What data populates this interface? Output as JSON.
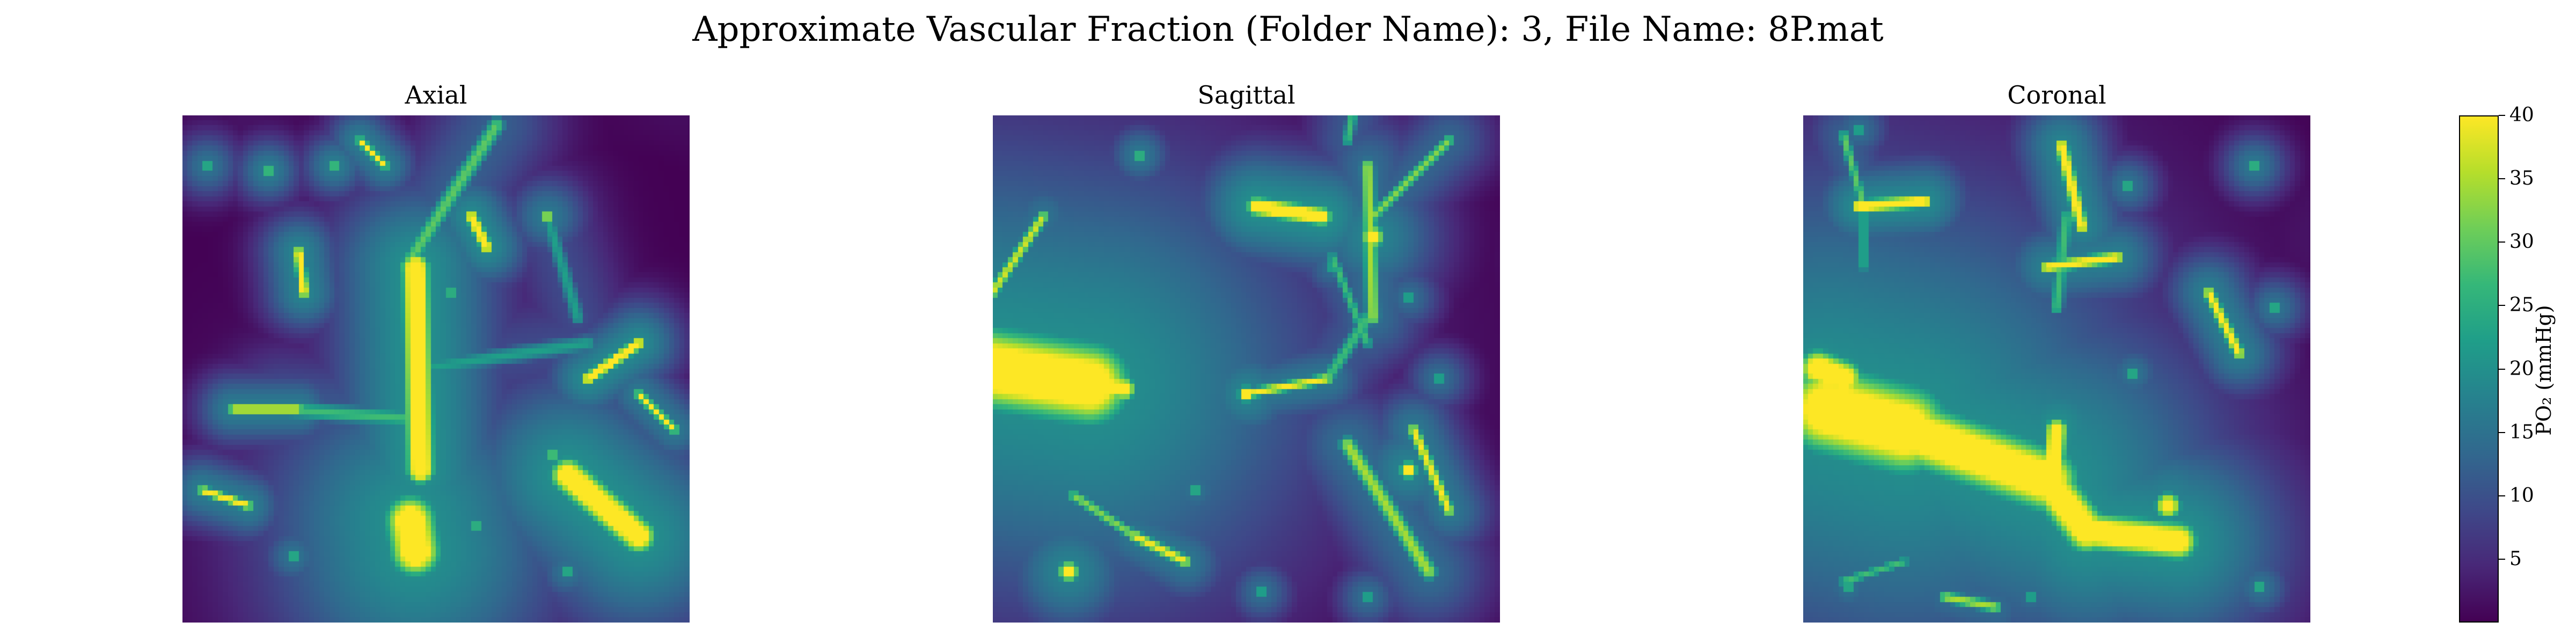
{
  "chart_data": {
    "type": "heatmap",
    "title": "Approximate Vascular Fraction (Folder Name): 3, File Name: 8P.mat",
    "colormap": "viridis",
    "grid": false,
    "panels": [
      {
        "title": "Axial",
        "vessels": [
          {
            "x1": 0.46,
            "y1": 0.3,
            "x2": 0.47,
            "y2": 0.7,
            "peak": 40,
            "width": 0.045
          },
          {
            "x1": 0.45,
            "y1": 0.8,
            "x2": 0.46,
            "y2": 0.86,
            "peak": 40,
            "width": 0.08
          },
          {
            "x1": 0.76,
            "y1": 0.71,
            "x2": 0.9,
            "y2": 0.83,
            "peak": 40,
            "width": 0.055
          },
          {
            "x1": 0.57,
            "y1": 0.2,
            "x2": 0.6,
            "y2": 0.26,
            "peak": 38,
            "width": 0.02
          },
          {
            "x1": 0.23,
            "y1": 0.27,
            "x2": 0.24,
            "y2": 0.35,
            "peak": 36,
            "width": 0.018
          },
          {
            "x1": 0.9,
            "y1": 0.45,
            "x2": 0.8,
            "y2": 0.52,
            "peak": 38,
            "width": 0.02
          },
          {
            "x1": 0.1,
            "y1": 0.58,
            "x2": 0.23,
            "y2": 0.58,
            "peak": 34,
            "width": 0.016
          },
          {
            "x1": 0.04,
            "y1": 0.74,
            "x2": 0.13,
            "y2": 0.77,
            "peak": 34,
            "width": 0.016
          },
          {
            "x1": 0.35,
            "y1": 0.05,
            "x2": 0.4,
            "y2": 0.1,
            "peak": 34,
            "width": 0.014
          },
          {
            "x1": 0.62,
            "y1": 0.02,
            "x2": 0.44,
            "y2": 0.3,
            "peak": 24,
            "width": 0.03
          },
          {
            "x1": 0.47,
            "y1": 0.6,
            "x2": 0.2,
            "y2": 0.58,
            "peak": 22,
            "width": 0.03
          },
          {
            "x1": 0.47,
            "y1": 0.5,
            "x2": 0.8,
            "y2": 0.45,
            "peak": 18,
            "width": 0.03
          },
          {
            "x1": 0.72,
            "y1": 0.2,
            "x2": 0.78,
            "y2": 0.4,
            "peak": 18,
            "width": 0.025
          },
          {
            "x1": 0.9,
            "y1": 0.55,
            "x2": 0.97,
            "y2": 0.62,
            "peak": 32,
            "width": 0.016
          }
        ],
        "spots": [
          {
            "x": 0.17,
            "y": 0.11,
            "peak": 38,
            "r": 0.012
          },
          {
            "x": 0.3,
            "y": 0.1,
            "peak": 38,
            "r": 0.012
          },
          {
            "x": 0.72,
            "y": 0.2,
            "peak": 36,
            "r": 0.016
          },
          {
            "x": 0.05,
            "y": 0.1,
            "peak": 34,
            "r": 0.012
          },
          {
            "x": 0.53,
            "y": 0.35,
            "peak": 36,
            "r": 0.012
          },
          {
            "x": 0.73,
            "y": 0.67,
            "peak": 34,
            "r": 0.014
          },
          {
            "x": 0.22,
            "y": 0.87,
            "peak": 34,
            "r": 0.012
          },
          {
            "x": 0.76,
            "y": 0.9,
            "peak": 34,
            "r": 0.012
          },
          {
            "x": 0.58,
            "y": 0.81,
            "peak": 36,
            "r": 0.012
          }
        ]
      },
      {
        "title": "Sagittal",
        "vessels": [
          {
            "x1": 0.0,
            "y1": 0.5,
            "x2": 0.19,
            "y2": 0.53,
            "peak": 40,
            "width": 0.13
          },
          {
            "x1": 0.19,
            "y1": 0.53,
            "x2": 0.26,
            "y2": 0.54,
            "peak": 40,
            "width": 0.035
          },
          {
            "x1": 0.52,
            "y1": 0.18,
            "x2": 0.65,
            "y2": 0.2,
            "peak": 40,
            "width": 0.03
          },
          {
            "x1": 0.0,
            "y1": 0.35,
            "x2": 0.1,
            "y2": 0.2,
            "peak": 30,
            "width": 0.02
          },
          {
            "x1": 0.74,
            "y1": 0.1,
            "x2": 0.75,
            "y2": 0.4,
            "peak": 28,
            "width": 0.025
          },
          {
            "x1": 0.75,
            "y1": 0.2,
            "x2": 0.9,
            "y2": 0.05,
            "peak": 26,
            "width": 0.02
          },
          {
            "x1": 0.67,
            "y1": 0.28,
            "x2": 0.74,
            "y2": 0.45,
            "peak": 22,
            "width": 0.018
          },
          {
            "x1": 0.5,
            "y1": 0.55,
            "x2": 0.66,
            "y2": 0.52,
            "peak": 32,
            "width": 0.018
          },
          {
            "x1": 0.66,
            "y1": 0.52,
            "x2": 0.74,
            "y2": 0.4,
            "peak": 22,
            "width": 0.025
          },
          {
            "x1": 0.7,
            "y1": 0.65,
            "x2": 0.86,
            "y2": 0.9,
            "peak": 28,
            "width": 0.03
          },
          {
            "x1": 0.28,
            "y1": 0.83,
            "x2": 0.38,
            "y2": 0.88,
            "peak": 32,
            "width": 0.02
          },
          {
            "x1": 0.16,
            "y1": 0.75,
            "x2": 0.28,
            "y2": 0.83,
            "peak": 26,
            "width": 0.02
          },
          {
            "x1": 0.7,
            "y1": 0.05,
            "x2": 0.71,
            "y2": 0.0,
            "peak": 22,
            "width": 0.02
          },
          {
            "x1": 0.83,
            "y1": 0.62,
            "x2": 0.9,
            "y2": 0.78,
            "peak": 32,
            "width": 0.02
          }
        ],
        "spots": [
          {
            "x": 0.75,
            "y": 0.24,
            "peak": 40,
            "r": 0.03
          },
          {
            "x": 0.5,
            "y": 0.55,
            "peak": 40,
            "r": 0.022
          },
          {
            "x": 0.15,
            "y": 0.9,
            "peak": 40,
            "r": 0.028
          },
          {
            "x": 0.82,
            "y": 0.7,
            "peak": 40,
            "r": 0.024
          },
          {
            "x": 0.29,
            "y": 0.08,
            "peak": 36,
            "r": 0.012
          },
          {
            "x": 0.88,
            "y": 0.52,
            "peak": 32,
            "r": 0.012
          },
          {
            "x": 0.4,
            "y": 0.74,
            "peak": 34,
            "r": 0.012
          },
          {
            "x": 0.74,
            "y": 0.95,
            "peak": 32,
            "r": 0.012
          },
          {
            "x": 0.53,
            "y": 0.94,
            "peak": 32,
            "r": 0.012
          },
          {
            "x": 0.82,
            "y": 0.36,
            "peak": 32,
            "r": 0.012
          },
          {
            "x": 0.67,
            "y": 0.3,
            "peak": 32,
            "r": 0.012
          }
        ]
      },
      {
        "title": "Coronal",
        "vessels": [
          {
            "x1": 0.05,
            "y1": 0.58,
            "x2": 0.2,
            "y2": 0.62,
            "peak": 40,
            "width": 0.14
          },
          {
            "x1": 0.2,
            "y1": 0.62,
            "x2": 0.48,
            "y2": 0.72,
            "peak": 40,
            "width": 0.1
          },
          {
            "x1": 0.48,
            "y1": 0.72,
            "x2": 0.56,
            "y2": 0.82,
            "peak": 40,
            "width": 0.07
          },
          {
            "x1": 0.56,
            "y1": 0.82,
            "x2": 0.74,
            "y2": 0.84,
            "peak": 40,
            "width": 0.06
          },
          {
            "x1": 0.5,
            "y1": 0.62,
            "x2": 0.49,
            "y2": 0.75,
            "peak": 40,
            "width": 0.035
          },
          {
            "x1": 0.03,
            "y1": 0.5,
            "x2": 0.08,
            "y2": 0.52,
            "peak": 40,
            "width": 0.06
          },
          {
            "x1": 0.11,
            "y1": 0.18,
            "x2": 0.24,
            "y2": 0.17,
            "peak": 38,
            "width": 0.022
          },
          {
            "x1": 0.51,
            "y1": 0.06,
            "x2": 0.55,
            "y2": 0.22,
            "peak": 36,
            "width": 0.022
          },
          {
            "x1": 0.48,
            "y1": 0.3,
            "x2": 0.62,
            "y2": 0.28,
            "peak": 34,
            "width": 0.022
          },
          {
            "x1": 0.8,
            "y1": 0.35,
            "x2": 0.86,
            "y2": 0.47,
            "peak": 34,
            "width": 0.02
          },
          {
            "x1": 0.08,
            "y1": 0.04,
            "x2": 0.12,
            "y2": 0.18,
            "peak": 24,
            "width": 0.018
          },
          {
            "x1": 0.12,
            "y1": 0.18,
            "x2": 0.12,
            "y2": 0.3,
            "peak": 22,
            "width": 0.016
          },
          {
            "x1": 0.52,
            "y1": 0.2,
            "x2": 0.5,
            "y2": 0.38,
            "peak": 22,
            "width": 0.025
          },
          {
            "x1": 0.28,
            "y1": 0.95,
            "x2": 0.38,
            "y2": 0.97,
            "peak": 28,
            "width": 0.02
          },
          {
            "x1": 0.08,
            "y1": 0.92,
            "x2": 0.2,
            "y2": 0.88,
            "peak": 22,
            "width": 0.018
          }
        ],
        "spots": [
          {
            "x": 0.64,
            "y": 0.14,
            "peak": 34,
            "r": 0.012
          },
          {
            "x": 0.89,
            "y": 0.1,
            "peak": 36,
            "r": 0.012
          },
          {
            "x": 0.93,
            "y": 0.38,
            "peak": 34,
            "r": 0.012
          },
          {
            "x": 0.65,
            "y": 0.51,
            "peak": 34,
            "r": 0.012
          },
          {
            "x": 0.11,
            "y": 0.03,
            "peak": 32,
            "r": 0.012
          },
          {
            "x": 0.09,
            "y": 0.93,
            "peak": 34,
            "r": 0.012
          },
          {
            "x": 0.45,
            "y": 0.95,
            "peak": 32,
            "r": 0.012
          },
          {
            "x": 0.9,
            "y": 0.93,
            "peak": 34,
            "r": 0.012
          },
          {
            "x": 0.72,
            "y": 0.77,
            "peak": 40,
            "r": 0.035
          }
        ]
      }
    ],
    "colorbar": {
      "label": "PO₂ (mmHg)",
      "min": 0,
      "max": 40,
      "ticks": [
        5,
        10,
        15,
        20,
        25,
        30,
        35,
        40
      ],
      "tick_labels": [
        "5",
        "10",
        "15",
        "20",
        "25",
        "30",
        "35",
        "40"
      ]
    }
  }
}
